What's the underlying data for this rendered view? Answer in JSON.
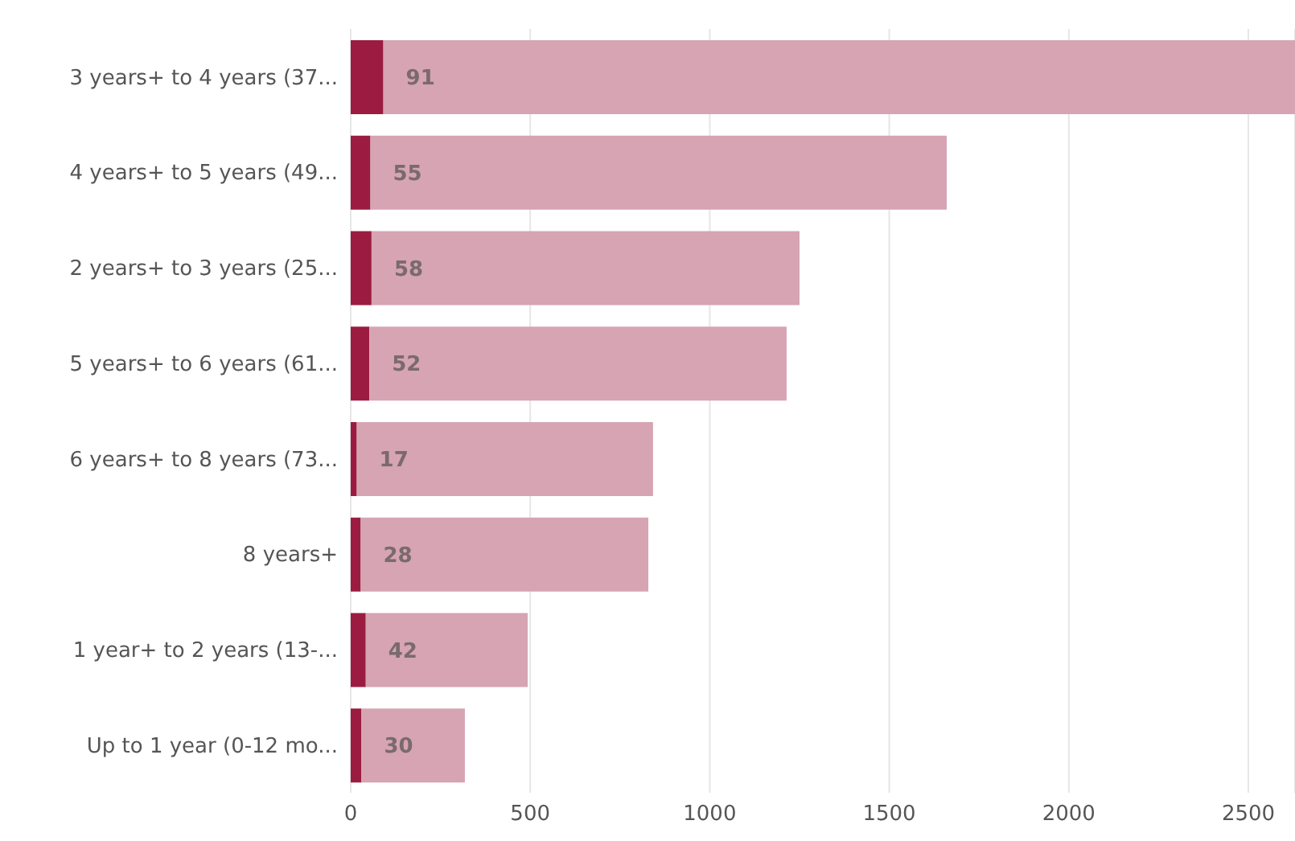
{
  "chart_data": {
    "type": "bar",
    "orientation": "horizontal",
    "stacked": true,
    "categories": [
      "3 years+ to 4 years (37...",
      "4 years+ to 5 years (49...",
      "2 years+ to 3 years (25...",
      "5 years+ to 6 years (61...",
      "6 years+ to 8 years (73...",
      "8 years+",
      "1 year+ to 2 years (13-...",
      "Up to 1 year (0-12 mo..."
    ],
    "series": [
      {
        "color": "#9b1c40",
        "values": [
          91,
          55,
          58,
          52,
          17,
          28,
          42,
          30
        ],
        "value_labels": [
          "91",
          "55",
          "58",
          "52",
          "17",
          "28",
          "42",
          "30"
        ]
      },
      {
        "color": "#d6a4b2",
        "values": [
          2539,
          1605,
          1192,
          1162,
          825,
          801,
          451,
          288
        ]
      }
    ],
    "xlim": [
      0,
      2630
    ],
    "xticks": [
      0,
      500,
      1000,
      1500,
      2000,
      2500
    ],
    "grid": "x"
  }
}
